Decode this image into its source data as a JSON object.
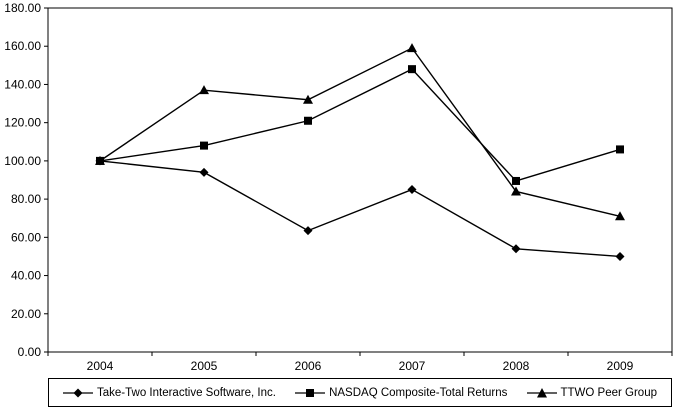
{
  "chart_data": {
    "type": "line",
    "title": "",
    "xlabel": "",
    "ylabel": "",
    "categories": [
      "2004",
      "2005",
      "2006",
      "2007",
      "2008",
      "2009"
    ],
    "series": [
      {
        "name": "Take-Two Interactive Software, Inc.",
        "marker": "diamond",
        "values": [
          100.0,
          94.0,
          63.5,
          85.0,
          54.0,
          50.0
        ]
      },
      {
        "name": "NASDAQ Composite-Total Returns",
        "marker": "square",
        "values": [
          100.0,
          108.0,
          121.0,
          148.0,
          89.5,
          106.0
        ]
      },
      {
        "name": "TTWO Peer Group",
        "marker": "triangle",
        "values": [
          100.0,
          137.0,
          132.0,
          159.0,
          84.0,
          71.0
        ]
      }
    ],
    "ylim": [
      0,
      180
    ],
    "ytick_step": 20,
    "ytick_labels": [
      "0.00",
      "20.00",
      "40.00",
      "60.00",
      "80.00",
      "100.00",
      "120.00",
      "140.00",
      "160.00",
      "180.00"
    ],
    "grid": false,
    "legend_position": "bottom",
    "line_color": "#000000",
    "marker_color": "#000000",
    "background": "#ffffff"
  }
}
